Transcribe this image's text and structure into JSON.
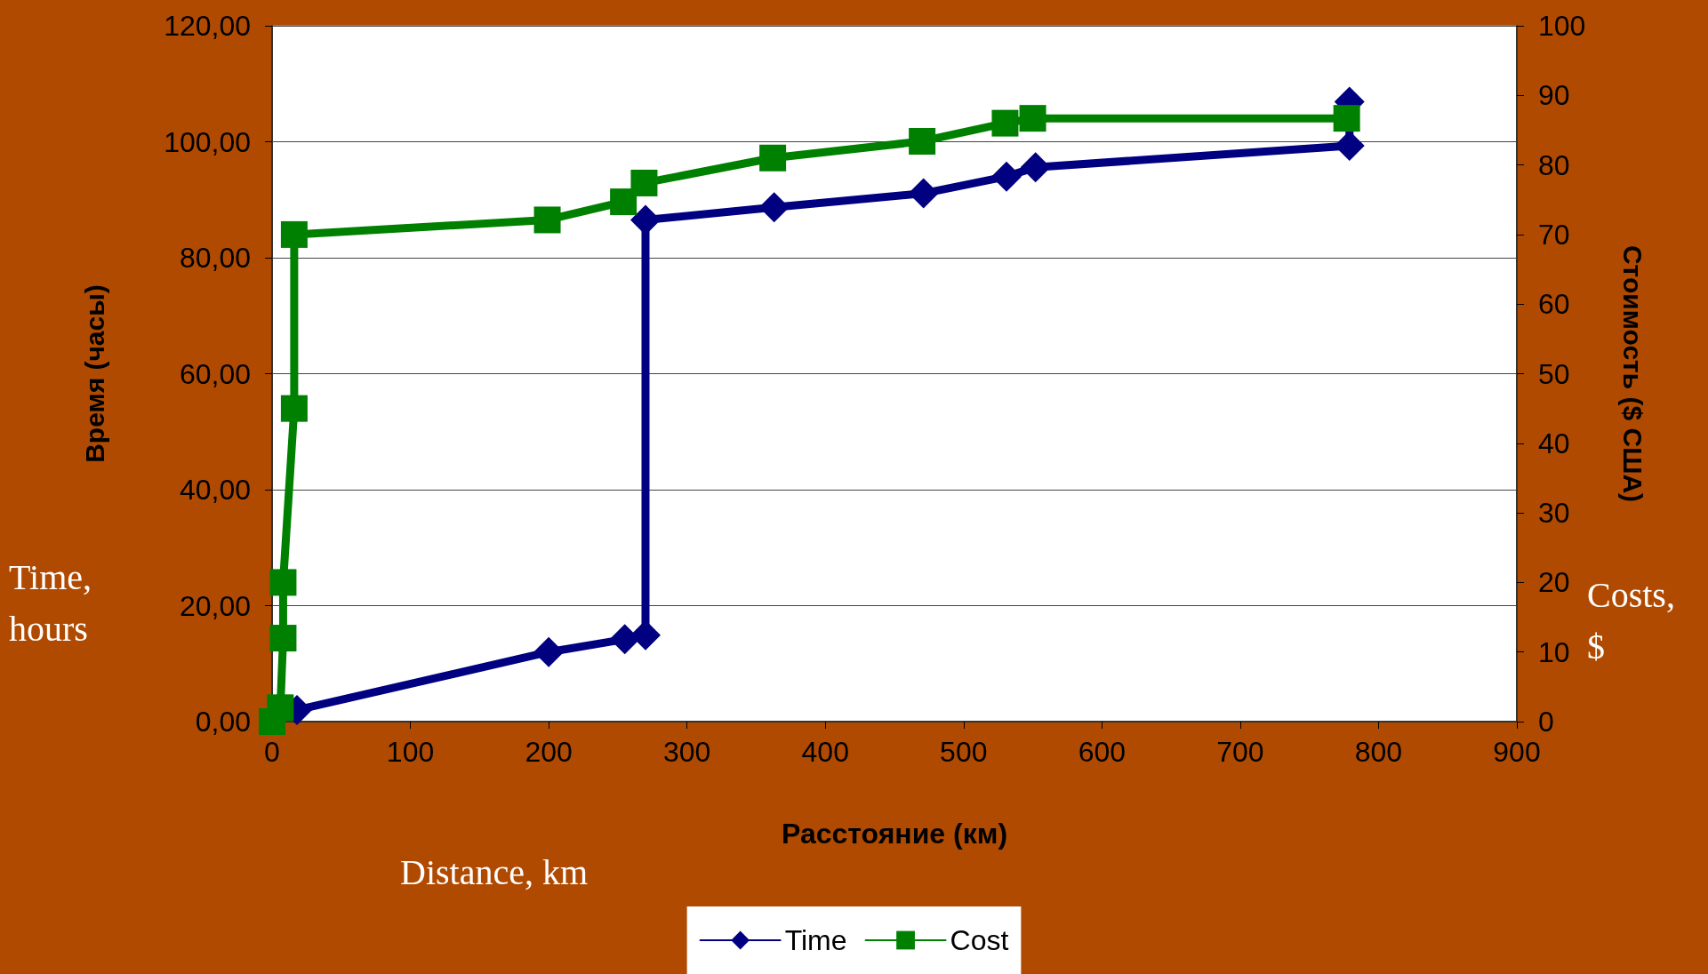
{
  "chart_data": {
    "type": "line",
    "xlabel": "Расстояние (км)",
    "ylabel": "Время (часы)",
    "y2label": "Стоимость ($ США)",
    "annotations": [
      "Time, hours",
      "Costs, $",
      "Distance, km"
    ],
    "xlim": [
      0,
      900
    ],
    "xticks": [
      0,
      100,
      200,
      300,
      400,
      500,
      600,
      700,
      800,
      900
    ],
    "ylim": [
      0,
      120
    ],
    "yticks": [
      {
        "value": 0,
        "label": "0,00"
      },
      {
        "value": 20,
        "label": "20,00"
      },
      {
        "value": 40,
        "label": "40,00"
      },
      {
        "value": 60,
        "label": "60,00"
      },
      {
        "value": 80,
        "label": "80,00"
      },
      {
        "value": 100,
        "label": "100,00"
      },
      {
        "value": 120,
        "label": "120,00"
      }
    ],
    "y2lim": [
      0,
      100
    ],
    "y2ticks": [
      0,
      10,
      20,
      30,
      40,
      50,
      60,
      70,
      80,
      90,
      100
    ],
    "grid": "y",
    "legend": "bottom",
    "series": [
      {
        "name": "Time",
        "color": "#000080",
        "marker": "diamond",
        "x": [
          18,
          200,
          255,
          270,
          270,
          363,
          471,
          531,
          552,
          779,
          779
        ],
        "values": [
          2,
          12,
          14.2,
          14.9,
          86.5,
          88.7,
          91.1,
          94,
          95.6,
          99.3,
          106.9
        ]
      },
      {
        "name": "Cost",
        "color": "#008000",
        "marker": "square",
        "axis": "y2",
        "x": [
          0,
          6,
          8,
          8,
          16,
          16,
          199,
          254,
          269,
          362,
          470,
          530,
          550,
          777
        ],
        "values": [
          0,
          2,
          12,
          20,
          45,
          70,
          72.1,
          74.7,
          77.4,
          81,
          83.4,
          86,
          86.7,
          86.7
        ]
      }
    ]
  }
}
